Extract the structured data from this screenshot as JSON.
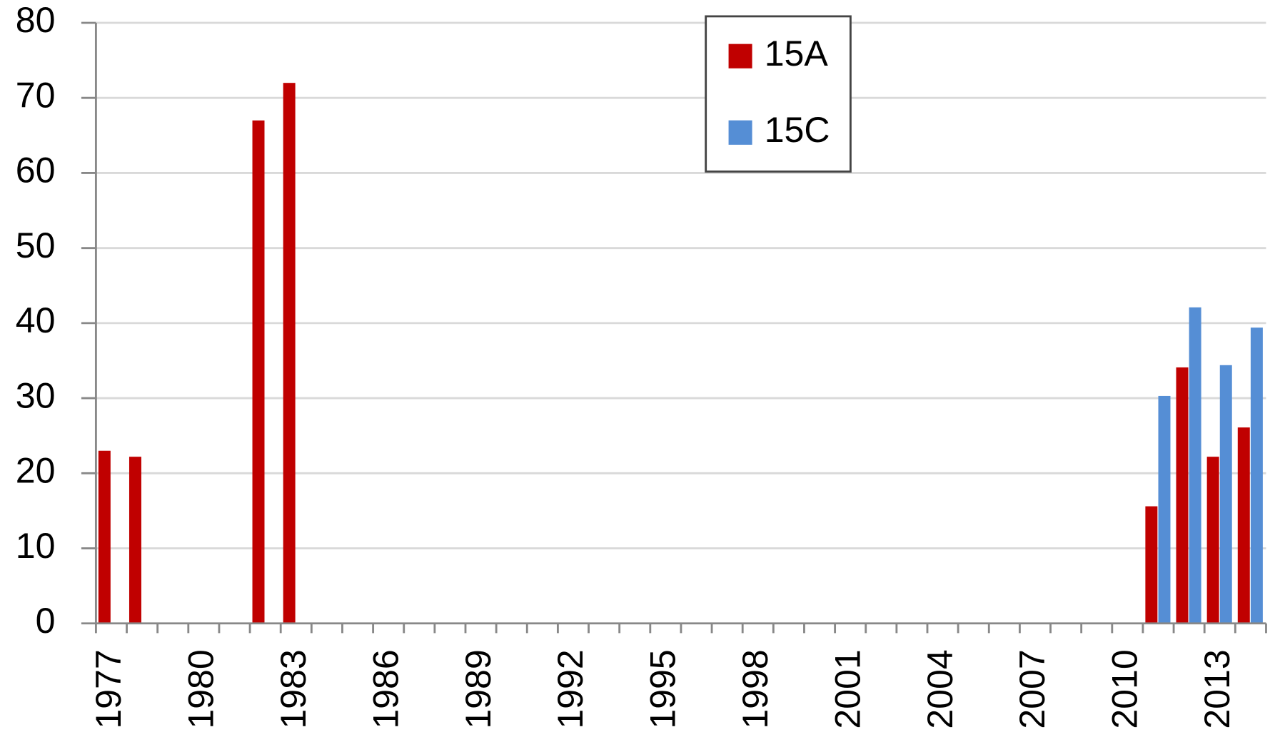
{
  "chart_data": {
    "type": "bar",
    "categories": [
      "1977",
      null,
      null,
      "1980",
      null,
      null,
      "1983",
      null,
      null,
      "1986",
      null,
      null,
      "1989",
      null,
      null,
      "1992",
      null,
      null,
      "1995",
      null,
      null,
      "1998",
      null,
      null,
      "2001",
      null,
      null,
      "2004",
      null,
      null,
      "2007",
      null,
      null,
      "2010",
      null,
      null,
      "2013",
      null
    ],
    "series": [
      {
        "name": "15A",
        "color": "#c00000",
        "values": [
          23,
          22.2,
          null,
          null,
          null,
          67,
          72,
          null,
          null,
          null,
          null,
          null,
          null,
          null,
          null,
          null,
          null,
          null,
          null,
          null,
          null,
          null,
          null,
          null,
          null,
          null,
          null,
          null,
          null,
          null,
          null,
          null,
          null,
          null,
          15.6,
          34.1,
          22.2,
          26.1
        ]
      },
      {
        "name": "15C",
        "color": "#558ed5",
        "values": [
          null,
          null,
          null,
          null,
          null,
          null,
          null,
          null,
          null,
          null,
          null,
          null,
          null,
          null,
          null,
          null,
          null,
          null,
          null,
          null,
          null,
          null,
          null,
          null,
          null,
          null,
          null,
          null,
          null,
          null,
          null,
          null,
          null,
          null,
          30.3,
          42.1,
          34.4,
          39.4
        ]
      }
    ],
    "ylim": [
      0,
      80
    ],
    "yticks": [
      0,
      10,
      20,
      30,
      40,
      50,
      60,
      70,
      80
    ],
    "grid": true,
    "legend": "top"
  }
}
